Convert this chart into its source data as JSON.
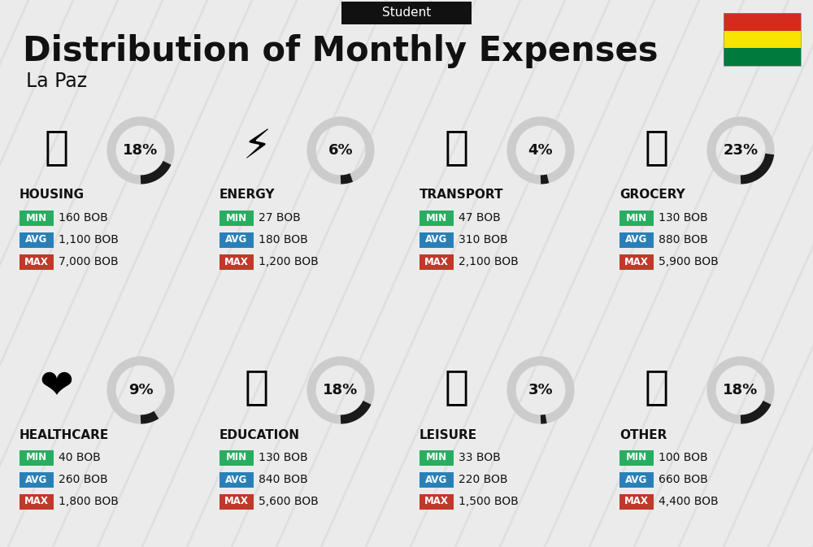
{
  "title": "Distribution of Monthly Expenses",
  "subtitle": "Student",
  "city": "La Paz",
  "bg_color": "#ebebeb",
  "categories": [
    {
      "name": "HOUSING",
      "pct": 18,
      "min_val": "160 BOB",
      "avg_val": "1,100 BOB",
      "max_val": "7,000 BOB",
      "icon": "🏙",
      "row": 0,
      "col": 0
    },
    {
      "name": "ENERGY",
      "pct": 6,
      "min_val": "27 BOB",
      "avg_val": "180 BOB",
      "max_val": "1,200 BOB",
      "icon": "⚡",
      "row": 0,
      "col": 1
    },
    {
      "name": "TRANSPORT",
      "pct": 4,
      "min_val": "47 BOB",
      "avg_val": "310 BOB",
      "max_val": "2,100 BOB",
      "icon": "🚌",
      "row": 0,
      "col": 2
    },
    {
      "name": "GROCERY",
      "pct": 23,
      "min_val": "130 BOB",
      "avg_val": "880 BOB",
      "max_val": "5,900 BOB",
      "icon": "🛒",
      "row": 0,
      "col": 3
    },
    {
      "name": "HEALTHCARE",
      "pct": 9,
      "min_val": "40 BOB",
      "avg_val": "260 BOB",
      "max_val": "1,800 BOB",
      "icon": "❤️",
      "row": 1,
      "col": 0
    },
    {
      "name": "EDUCATION",
      "pct": 18,
      "min_val": "130 BOB",
      "avg_val": "840 BOB",
      "max_val": "5,600 BOB",
      "icon": "🎓",
      "row": 1,
      "col": 1
    },
    {
      "name": "LEISURE",
      "pct": 3,
      "min_val": "33 BOB",
      "avg_val": "220 BOB",
      "max_val": "1,500 BOB",
      "icon": "🛍️",
      "row": 1,
      "col": 2
    },
    {
      "name": "OTHER",
      "pct": 18,
      "min_val": "100 BOB",
      "avg_val": "660 BOB",
      "max_val": "4,400 BOB",
      "icon": "💰",
      "row": 1,
      "col": 3
    }
  ],
  "min_color": "#27ae60",
  "avg_color": "#2980b9",
  "max_color": "#c0392b",
  "donut_filled_color": "#1a1a1a",
  "donut_empty_color": "#cccccc",
  "text_color": "#111111",
  "stripe_color": "#d5d5d5",
  "flag_colors": [
    "#d52b1e",
    "#f9e300",
    "#007a3d"
  ]
}
